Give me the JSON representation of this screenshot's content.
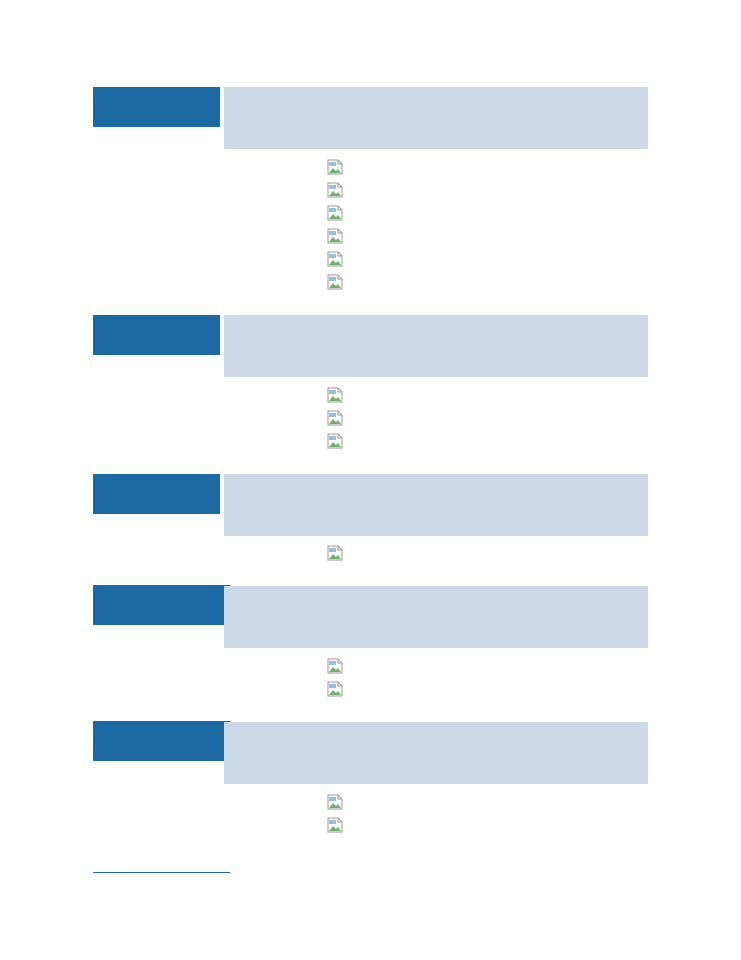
{
  "page": {
    "background": "#ffffff",
    "accent_color": "#1c6aa4",
    "band_color": "#ccd9e6"
  },
  "sections": [
    {
      "id": "section-1",
      "tab_text": "",
      "band_text": "",
      "image_placeholders": 6
    },
    {
      "id": "section-2",
      "tab_text": "",
      "band_text": "",
      "image_placeholders": 3
    },
    {
      "id": "section-3",
      "tab_text": "",
      "band_text": "",
      "image_placeholders": 1
    },
    {
      "id": "section-4",
      "tab_text": "",
      "band_text": "",
      "image_placeholders": 2
    },
    {
      "id": "section-5",
      "tab_text": "",
      "band_text": "",
      "image_placeholders": 2
    }
  ],
  "icons": {
    "image_placeholder": "broken-image-icon"
  }
}
